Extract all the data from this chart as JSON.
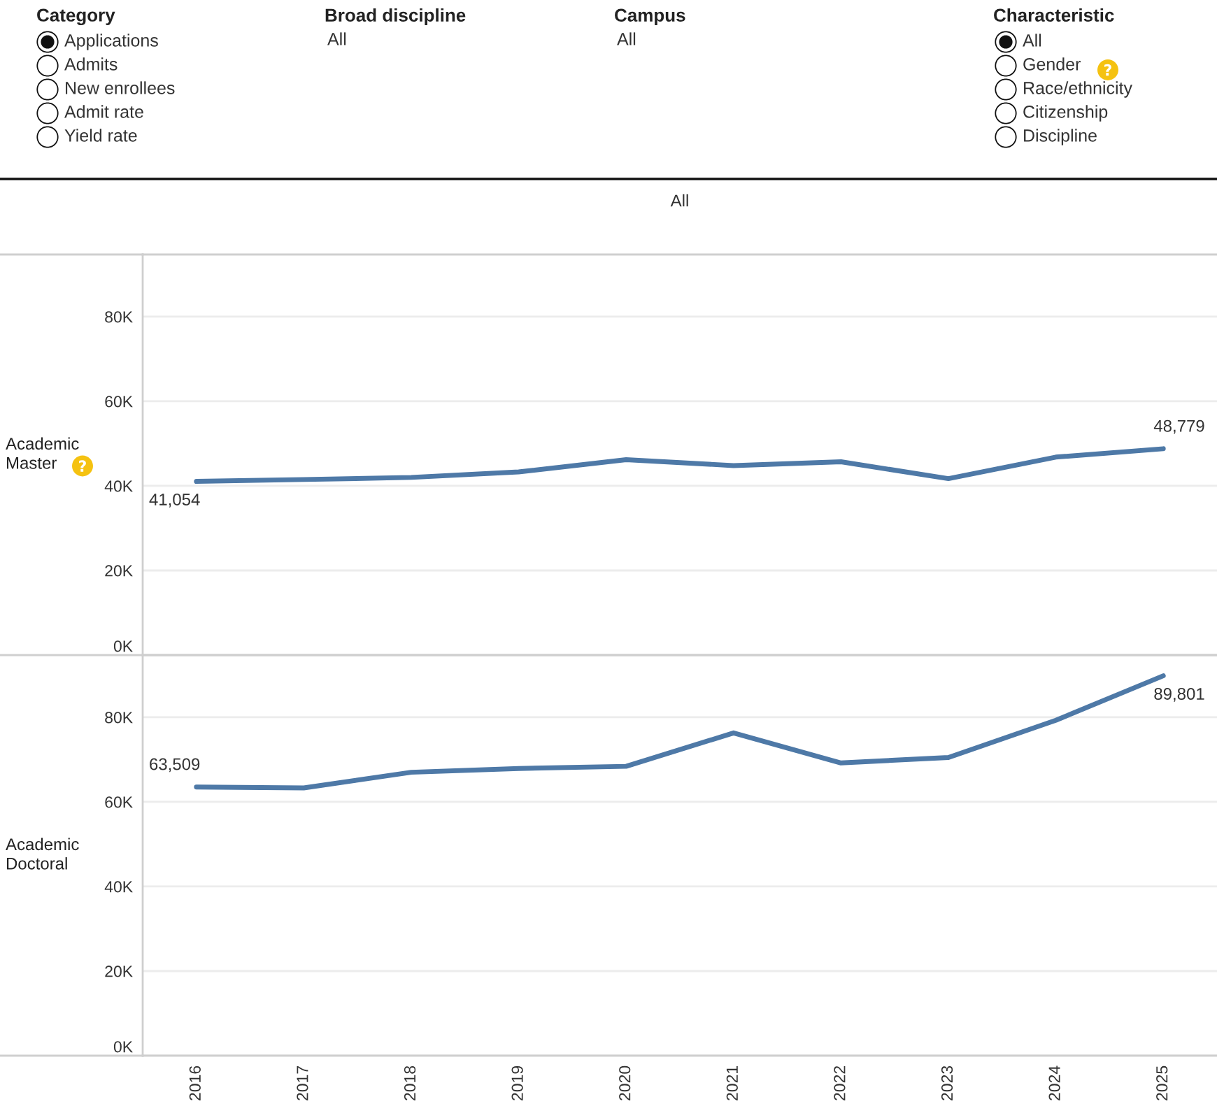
{
  "chart_data": [
    {
      "type": "line",
      "title": "All",
      "ylabel": "Academic Master",
      "categories": [
        "2016",
        "2017",
        "2018",
        "2019",
        "2020",
        "2021",
        "2022",
        "2023",
        "2024",
        "2025"
      ],
      "series": [
        {
          "color": "#4e79a7",
          "values": [
            41054,
            41500,
            42000,
            43300,
            46200,
            44800,
            45700,
            41700,
            46800,
            48779
          ],
          "value_labels": [
            "41,054",
            null,
            null,
            null,
            null,
            null,
            null,
            null,
            null,
            "48,779"
          ]
        }
      ],
      "ylim": [
        0,
        94700
      ],
      "yticks": [
        {
          "value": 0,
          "label": "0K"
        },
        {
          "value": 20000,
          "label": "20K"
        },
        {
          "value": 40000,
          "label": "40K"
        },
        {
          "value": 60000,
          "label": "60K"
        },
        {
          "value": 80000,
          "label": "80K"
        }
      ],
      "grid": "y",
      "tick_labels": "y",
      "annotations": [
        "Category",
        "Applications",
        "Admits",
        "New enrollees",
        "Admit rate",
        "Yield rate",
        "Broad discipline",
        "All",
        "Campus",
        "All",
        "Characteristic",
        "All",
        "Gender",
        "Race/ethnicity",
        "Citizenship",
        "Discipline"
      ]
    },
    {
      "type": "line",
      "ylabel": "Academic Doctoral",
      "categories": [
        "2016",
        "2017",
        "2018",
        "2019",
        "2020",
        "2021",
        "2022",
        "2023",
        "2024",
        "2025"
      ],
      "series": [
        {
          "color": "#4e79a7",
          "values": [
            63509,
            63300,
            67000,
            67900,
            68400,
            76300,
            69200,
            70500,
            79300,
            89801
          ],
          "value_labels": [
            "63,509",
            null,
            null,
            null,
            null,
            null,
            null,
            null,
            null,
            "89,801"
          ]
        }
      ],
      "ylim": [
        0,
        94700
      ],
      "yticks": [
        {
          "value": 0,
          "label": "0K"
        },
        {
          "value": 20000,
          "label": "20K"
        },
        {
          "value": 40000,
          "label": "40K"
        },
        {
          "value": 60000,
          "label": "60K"
        },
        {
          "value": 80000,
          "label": "80K"
        }
      ],
      "grid": "y"
    }
  ]
}
